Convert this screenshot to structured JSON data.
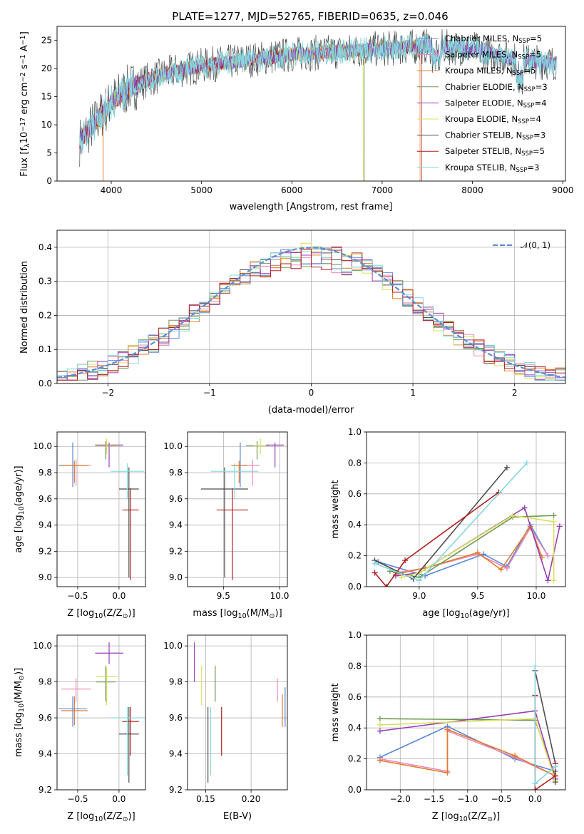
{
  "figure": {
    "title": "PLATE=1277, MJD=52765, FIBERID=0635, z=0.046",
    "colors": {
      "Chabrier MILES": "#5b87d6",
      "Salpeter MILES": "#e889b9",
      "Kroupa MILES": "#e07b2a",
      "Chabrier ELODIE": "#6e9a52",
      "Salpeter ELODIE": "#9a3fb5",
      "Kroupa ELODIE": "#d8e05a",
      "Chabrier STELIB": "#4d4d4d",
      "Salpeter STELIB": "#b21e1e",
      "Kroupa STELIB": "#86d6de",
      "normal": "#5b8fd0"
    }
  },
  "chart_data": [
    {
      "id": "spectrum",
      "type": "line",
      "title": "PLATE=1277, MJD=52765, FIBERID=0635, z=0.046",
      "xlabel": "wavelength [Angstrom, rest frame]",
      "ylabel_main": "Flux [f",
      "ylabel_sub": "λ",
      "ylabel_rest": "10",
      "ylabel_sup1": "−17",
      "ylabel_mid": " erg cm",
      "ylabel_sup2": "−2",
      "ylabel_mid2": " s",
      "ylabel_sup3": "−1",
      "ylabel_mid3": " A",
      "ylabel_sup4": "−1",
      "ylabel_end": "]",
      "xlim": [
        3400,
        9030
      ],
      "ylim": [
        0,
        27.5
      ],
      "xticks": [
        4000,
        5000,
        6000,
        7000,
        8000,
        9000
      ],
      "yticks": [
        0,
        5,
        10,
        15,
        20,
        25
      ],
      "data_x_range": [
        3650,
        8930
      ],
      "continuum": [
        [
          3650,
          7
        ],
        [
          3800,
          10
        ],
        [
          4000,
          14
        ],
        [
          4200,
          16.5
        ],
        [
          4400,
          18
        ],
        [
          4700,
          19.5
        ],
        [
          5000,
          20.5
        ],
        [
          5500,
          21.5
        ],
        [
          6000,
          22.5
        ],
        [
          6500,
          23
        ],
        [
          7000,
          23.5
        ],
        [
          7500,
          24
        ],
        [
          8000,
          23.5
        ],
        [
          8500,
          21.5
        ],
        [
          8930,
          21
        ]
      ],
      "legend": [
        {
          "label": "Chabrier MILES, N",
          "sub": "SSP",
          "suffix": "=5"
        },
        {
          "label": "Salpeter MILES, N",
          "sub": "SSP",
          "suffix": "=5"
        },
        {
          "label": "Kroupa MILES, N",
          "sub": "SSP",
          "suffix": "=5"
        },
        {
          "label": "Chabrier ELODIE, N",
          "sub": "SSP",
          "suffix": "=3"
        },
        {
          "label": "Salpeter ELODIE, N",
          "sub": "SSP",
          "suffix": "=4"
        },
        {
          "label": "Kroupa ELODIE, N",
          "sub": "SSP",
          "suffix": "=4"
        },
        {
          "label": "Chabrier STELIB, N",
          "sub": "SSP",
          "suffix": "=3"
        },
        {
          "label": "Salpeter STELIB, N",
          "sub": "SSP",
          "suffix": "=5"
        },
        {
          "label": "Kroupa STELIB, N",
          "sub": "SSP",
          "suffix": "=3"
        }
      ],
      "legend_position": "right"
    },
    {
      "id": "residuals",
      "type": "histogram",
      "xlabel": "(data-model)/error",
      "ylabel": "Normed distribution",
      "xlim": [
        -2.5,
        2.5
      ],
      "ylim": [
        0,
        0.45
      ],
      "xticks": [
        -2,
        -1,
        0,
        1,
        2
      ],
      "yticks": [
        0.0,
        0.1,
        0.2,
        0.3,
        0.4
      ],
      "grid": true,
      "bin_width": 0.1,
      "legend": "𝒩(0, 1)",
      "legend_position": "top-right"
    },
    {
      "id": "age-vs-z",
      "type": "errorbar",
      "xlabel": "Z [log",
      "xlabel_sub": "10",
      "xlabel_rest": "(Z/Z",
      "xlabel_sub2": "⊙",
      "xlabel_end": ")]",
      "ylabel": "age  [log",
      "ylabel_sub": "10",
      "ylabel_rest": "(age/yr)]",
      "xlim": [
        -0.75,
        0.32
      ],
      "ylim": [
        8.93,
        10.11
      ],
      "xticks": [
        -0.5,
        0.0
      ],
      "yticks": [
        9.0,
        9.2,
        9.4,
        9.6,
        9.8,
        10.0
      ],
      "points": [
        {
          "model": "Chabrier MILES",
          "x": -0.56,
          "y": 9.855,
          "xerr": 0.17,
          "ylo": 9.69,
          "yhi": 10.03
        },
        {
          "model": "Salpeter MILES",
          "x": -0.52,
          "y": 9.855,
          "xerr": 0.18,
          "ylo": 9.7,
          "yhi": 9.9
        },
        {
          "model": "Kroupa MILES",
          "x": -0.54,
          "y": 9.855,
          "xerr": 0.16,
          "ylo": 9.72,
          "yhi": 9.89
        },
        {
          "model": "Chabrier ELODIE",
          "x": -0.16,
          "y": 10.005,
          "xerr": 0.12,
          "ylo": 9.9,
          "yhi": 10.04
        },
        {
          "model": "Salpeter ELODIE",
          "x": -0.12,
          "y": 10.01,
          "xerr": 0.17,
          "ylo": 9.84,
          "yhi": 10.03
        },
        {
          "model": "Kroupa ELODIE",
          "x": -0.15,
          "y": 10.005,
          "xerr": 0.13,
          "ylo": 9.94,
          "yhi": 10.06
        },
        {
          "model": "Chabrier STELIB",
          "x": 0.12,
          "y": 9.675,
          "xerr": 0.12,
          "ylo": 9.0,
          "yhi": 9.84
        },
        {
          "model": "Salpeter STELIB",
          "x": 0.14,
          "y": 9.515,
          "xerr": 0.1,
          "ylo": 8.98,
          "yhi": 9.68
        },
        {
          "model": "Kroupa STELIB",
          "x": 0.1,
          "y": 9.81,
          "xerr": 0.2,
          "ylo": 9.6,
          "yhi": 9.87
        }
      ]
    },
    {
      "id": "age-vs-mass",
      "type": "errorbar",
      "xlabel": "mass [log",
      "xlabel_sub": "10",
      "xlabel_rest": "(M/M",
      "xlabel_sub2": "⊙",
      "xlabel_end": ")]",
      "xlim": [
        9.18,
        10.07
      ],
      "ylim": [
        8.93,
        10.11
      ],
      "xticks": [
        9.5,
        10.0
      ],
      "yticks": [
        9.0,
        9.2,
        9.4,
        9.6,
        9.8,
        10.0
      ],
      "points": [
        {
          "model": "Chabrier MILES",
          "x": 9.65,
          "y": 9.855,
          "xerr": 0.06,
          "ylo": 9.69,
          "yhi": 10.03
        },
        {
          "model": "Salpeter MILES",
          "x": 9.76,
          "y": 9.855,
          "xerr": 0.06,
          "ylo": 9.7,
          "yhi": 9.9
        },
        {
          "model": "Kroupa MILES",
          "x": 9.64,
          "y": 9.855,
          "xerr": 0.07,
          "ylo": 9.72,
          "yhi": 9.89
        },
        {
          "model": "Chabrier ELODIE",
          "x": 9.8,
          "y": 10.005,
          "xerr": 0.1,
          "ylo": 9.9,
          "yhi": 10.04
        },
        {
          "model": "Salpeter ELODIE",
          "x": 9.96,
          "y": 10.01,
          "xerr": 0.08,
          "ylo": 9.84,
          "yhi": 10.03
        },
        {
          "model": "Kroupa ELODIE",
          "x": 9.83,
          "y": 10.005,
          "xerr": 0.06,
          "ylo": 9.94,
          "yhi": 10.06
        },
        {
          "model": "Chabrier STELIB",
          "x": 9.51,
          "y": 9.675,
          "xerr": 0.21,
          "ylo": 9.0,
          "yhi": 9.84
        },
        {
          "model": "Salpeter STELIB",
          "x": 9.58,
          "y": 9.515,
          "xerr": 0.14,
          "ylo": 8.98,
          "yhi": 9.68
        },
        {
          "model": "Kroupa STELIB",
          "x": 9.6,
          "y": 9.81,
          "xerr": 0.21,
          "ylo": 9.6,
          "yhi": 9.87
        }
      ]
    },
    {
      "id": "weight-vs-age",
      "type": "line",
      "xlabel": "age  [log",
      "xlabel_sub": "10",
      "xlabel_rest": "(age/yr)]",
      "ylabel": "mass weight",
      "xlim": [
        8.55,
        10.25
      ],
      "ylim": [
        0,
        1
      ],
      "xticks": [
        9.0,
        9.5,
        10.0
      ],
      "yticks": [
        0.0,
        0.2,
        0.4,
        0.6,
        0.8,
        1.0
      ],
      "grid": true,
      "series": [
        {
          "model": "Chabrier MILES",
          "x": [
            8.65,
            9.05,
            9.55,
            9.75,
            9.95,
            10.1
          ],
          "y": [
            0.16,
            0.07,
            0.21,
            0.13,
            0.4,
            0.2
          ]
        },
        {
          "model": "Salpeter MILES",
          "x": [
            8.8,
            9.05,
            9.5,
            9.75,
            9.95,
            10.1
          ],
          "y": [
            0.09,
            0.12,
            0.21,
            0.12,
            0.38,
            0.2
          ]
        },
        {
          "model": "Kroupa MILES",
          "x": [
            8.8,
            9.05,
            9.5,
            9.7,
            9.95,
            10.05
          ],
          "y": [
            0.08,
            0.12,
            0.22,
            0.11,
            0.39,
            0.19
          ]
        },
        {
          "model": "Chabrier ELODIE",
          "x": [
            8.75,
            9.0,
            9.8,
            10.15
          ],
          "y": [
            0.1,
            0.06,
            0.45,
            0.46
          ]
        },
        {
          "model": "Salpeter ELODIE",
          "x": [
            8.8,
            9.0,
            9.9,
            10.1,
            10.2
          ],
          "y": [
            0.07,
            0.09,
            0.51,
            0.04,
            0.39
          ]
        },
        {
          "model": "Kroupa ELODIE",
          "x": [
            8.85,
            9.0,
            9.8,
            10.15,
            10.15
          ],
          "y": [
            0.06,
            0.09,
            0.46,
            0.42,
            0.04
          ]
        },
        {
          "model": "Chabrier STELIB",
          "x": [
            8.62,
            8.95,
            9.75
          ],
          "y": [
            0.17,
            0.05,
            0.77
          ]
        },
        {
          "model": "Salpeter STELIB",
          "x": [
            8.62,
            8.72,
            8.88,
            9.68
          ],
          "y": [
            0.09,
            0.0,
            0.17,
            0.61
          ]
        },
        {
          "model": "Kroupa STELIB",
          "x": [
            8.62,
            9.0,
            9.92
          ],
          "y": [
            0.15,
            0.04,
            0.8
          ]
        }
      ]
    },
    {
      "id": "mass-vs-z",
      "type": "errorbar",
      "xlabel": "Z [log",
      "xlabel_sub": "10",
      "xlabel_rest": "(Z/Z",
      "xlabel_sub2": "⊙",
      "xlabel_end": ")]",
      "ylabel": "mass [log",
      "ylabel_sub": "10",
      "ylabel_rest": "(M/M",
      "ylabel_sub2": "⊙",
      "ylabel_end": ")]",
      "xlim": [
        -0.75,
        0.32
      ],
      "ylim": [
        9.2,
        10.06
      ],
      "xticks": [
        -0.5,
        0.0
      ],
      "yticks": [
        9.2,
        9.4,
        9.6,
        9.8,
        10.0
      ],
      "points": [
        {
          "model": "Chabrier MILES",
          "x": -0.56,
          "y": 9.65,
          "xerr": 0.17,
          "ylo": 9.55,
          "yhi": 9.72
        },
        {
          "model": "Salpeter MILES",
          "x": -0.52,
          "y": 9.76,
          "xerr": 0.18,
          "ylo": 9.69,
          "yhi": 9.82
        },
        {
          "model": "Kroupa MILES",
          "x": -0.54,
          "y": 9.64,
          "xerr": 0.16,
          "ylo": 9.56,
          "yhi": 9.72
        },
        {
          "model": "Chabrier ELODIE",
          "x": -0.16,
          "y": 9.8,
          "xerr": 0.12,
          "ylo": 9.69,
          "yhi": 9.89
        },
        {
          "model": "Salpeter ELODIE",
          "x": -0.12,
          "y": 9.96,
          "xerr": 0.17,
          "ylo": 9.9,
          "yhi": 10.02
        },
        {
          "model": "Kroupa ELODIE",
          "x": -0.15,
          "y": 9.83,
          "xerr": 0.13,
          "ylo": 9.67,
          "yhi": 9.88
        },
        {
          "model": "Chabrier STELIB",
          "x": 0.12,
          "y": 9.51,
          "xerr": 0.12,
          "ylo": 9.24,
          "yhi": 9.66
        },
        {
          "model": "Salpeter STELIB",
          "x": 0.14,
          "y": 9.58,
          "xerr": 0.1,
          "ylo": 9.39,
          "yhi": 9.66
        },
        {
          "model": "Kroupa STELIB",
          "x": 0.1,
          "y": 9.6,
          "xerr": 0.2,
          "ylo": 9.28,
          "yhi": 9.66
        }
      ]
    },
    {
      "id": "mass-vs-ebv",
      "type": "errorbar",
      "xlabel": "E(B-V)",
      "xlim": [
        0.13,
        0.24
      ],
      "ylim": [
        9.2,
        10.06
      ],
      "xticks": [
        0.15,
        0.2
      ],
      "xtick_labels": [
        "0.15",
        "0.20"
      ],
      "yticks": [
        9.2,
        9.4,
        9.6,
        9.8,
        10.0
      ],
      "points": [
        {
          "model": "Chabrier MILES",
          "x": 0.2375,
          "y": 9.65,
          "ylo": 9.55,
          "yhi": 9.77
        },
        {
          "model": "Salpeter MILES",
          "x": 0.229,
          "y": 9.76,
          "ylo": 9.69,
          "yhi": 9.82
        },
        {
          "model": "Kroupa MILES",
          "x": 0.2345,
          "y": 9.64,
          "ylo": 9.55,
          "yhi": 9.73
        },
        {
          "model": "Chabrier ELODIE",
          "x": 0.1605,
          "y": 9.8,
          "ylo": 9.69,
          "yhi": 9.89
        },
        {
          "model": "Salpeter ELODIE",
          "x": 0.1375,
          "y": 9.96,
          "ylo": 9.8,
          "yhi": 10.02
        },
        {
          "model": "Kroupa ELODIE",
          "x": 0.1455,
          "y": 9.83,
          "ylo": 9.67,
          "yhi": 9.89
        },
        {
          "model": "Chabrier STELIB",
          "x": 0.1525,
          "y": 9.51,
          "ylo": 9.24,
          "yhi": 9.66
        },
        {
          "model": "Salpeter STELIB",
          "x": 0.1675,
          "y": 9.58,
          "ylo": 9.39,
          "yhi": 9.66
        },
        {
          "model": "Kroupa STELIB",
          "x": 0.1555,
          "y": 9.6,
          "ylo": 9.28,
          "yhi": 9.66
        }
      ]
    },
    {
      "id": "weight-vs-z",
      "type": "line",
      "xlabel": "Z [log",
      "xlabel_sub": "10",
      "xlabel_rest": "(Z/Z",
      "xlabel_sub2": "⊙",
      "xlabel_end": ")]",
      "ylabel": "mass weight",
      "xlim": [
        -2.5,
        0.45
      ],
      "ylim": [
        0,
        1
      ],
      "xticks": [
        -2.0,
        -1.5,
        -1.0,
        -0.5,
        0.0
      ],
      "xtick_labels": [
        "−2.0",
        "−1.5",
        "−1.0",
        "−0.5",
        "0.0"
      ],
      "yticks": [
        0.0,
        0.2,
        0.4,
        0.6,
        0.8,
        1.0
      ],
      "grid": true,
      "series": [
        {
          "model": "Chabrier MILES",
          "x": [
            -2.3,
            -1.3,
            -0.3,
            0.3
          ],
          "y": [
            0.21,
            0.41,
            0.2,
            0.12
          ]
        },
        {
          "model": "Salpeter MILES",
          "x": [
            -2.3,
            -1.3,
            -1.3,
            -0.3,
            0.3
          ],
          "y": [
            0.2,
            0.12,
            0.38,
            0.21,
            0.09
          ]
        },
        {
          "model": "Kroupa MILES",
          "x": [
            -2.3,
            -1.3,
            -1.3,
            -0.3,
            0.3
          ],
          "y": [
            0.19,
            0.11,
            0.39,
            0.22,
            0.09
          ]
        },
        {
          "model": "Chabrier ELODIE",
          "x": [
            -2.3,
            0.0,
            0.3
          ],
          "y": [
            0.46,
            0.45,
            0.09
          ]
        },
        {
          "model": "Salpeter ELODIE",
          "x": [
            -2.3,
            0.0,
            0.3
          ],
          "y": [
            0.38,
            0.51,
            0.07
          ]
        },
        {
          "model": "Kroupa ELODIE",
          "x": [
            -2.3,
            0.0,
            0.3
          ],
          "y": [
            0.42,
            0.46,
            0.06
          ]
        },
        {
          "model": "Chabrier STELIB",
          "x": [
            0.0,
            0.3,
            0.3
          ],
          "y": [
            0.77,
            0.17,
            0.05
          ]
        },
        {
          "model": "Salpeter STELIB",
          "x": [
            0.0,
            0.0,
            0.3,
            0.3
          ],
          "y": [
            0.61,
            0.0,
            0.09,
            0.17
          ]
        },
        {
          "model": "Kroupa STELIB",
          "x": [
            0.0,
            0.0,
            0.3
          ],
          "y": [
            0.8,
            0.04,
            0.15
          ]
        }
      ]
    }
  ]
}
